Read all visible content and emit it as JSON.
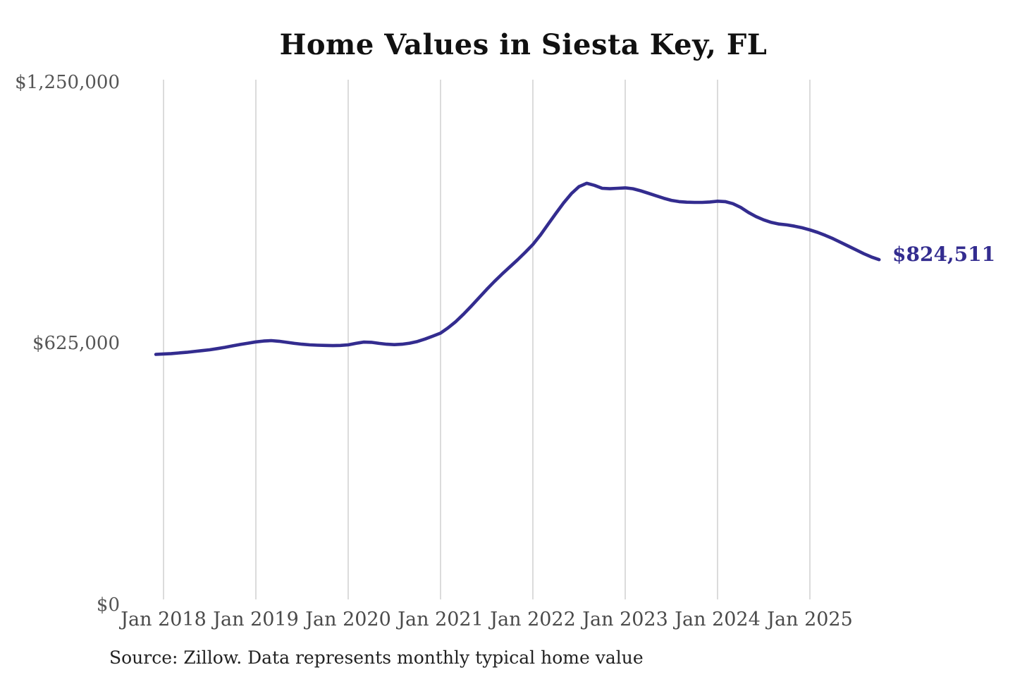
{
  "chart_data": {
    "type": "line",
    "title": "Home Values in Siesta Key, FL",
    "source_note": "Source: Zillow. Data represents monthly typical home value",
    "end_label": "$824,511",
    "end_value": 824511,
    "line_color": "#332c8f",
    "grid_color": "#cccccc",
    "x_tick_labels": [
      "Jan 2018",
      "Jan 2019",
      "Jan 2020",
      "Jan 2021",
      "Jan 2022",
      "Jan 2023",
      "Jan 2024",
      "Jan 2025"
    ],
    "y_tick_labels": [
      "$0",
      "$625,000",
      "$1,250,000"
    ],
    "y_tick_values": [
      0,
      625000,
      1250000
    ],
    "ylim": [
      0,
      1250000
    ],
    "grid": "vertical-only",
    "legend": "none",
    "series": [
      {
        "name": "Monthly typical home value",
        "start_month": "2017-12",
        "frequency": "monthly",
        "values": [
          597000,
          598000,
          599000,
          600500,
          602000,
          604000,
          606000,
          608000,
          611000,
          614000,
          617500,
          621000,
          624000,
          627000,
          629000,
          630000,
          628500,
          626000,
          623500,
          621500,
          620000,
          619000,
          618500,
          618000,
          618500,
          620000,
          623500,
          626500,
          626000,
          623500,
          621500,
          620500,
          621500,
          624000,
          628000,
          634000,
          641000,
          648000,
          661000,
          676000,
          694000,
          713000,
          733000,
          753000,
          772000,
          790000,
          807000,
          824000,
          842000,
          861000,
          884000,
          910000,
          936000,
          961000,
          983000,
          1000000,
          1008000,
          1003000,
          996000,
          995000,
          996000,
          997000,
          995000,
          990000,
          984000,
          978000,
          972000,
          967000,
          964000,
          962500,
          962000,
          962000,
          963000,
          965000,
          964000,
          959000,
          950000,
          938000,
          928000,
          920000,
          914000,
          910000,
          908000,
          905000,
          901000,
          896000,
          890000,
          883000,
          875000,
          866000,
          857000,
          848000,
          839000,
          831000,
          824511
        ]
      }
    ]
  }
}
